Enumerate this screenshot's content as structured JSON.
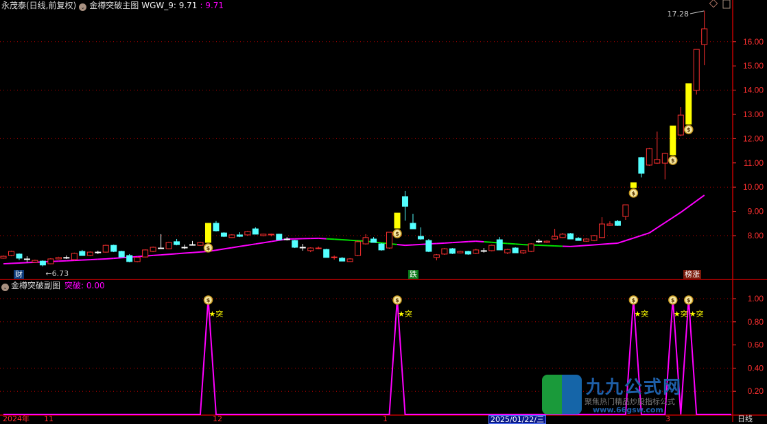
{
  "header": {
    "stock": "永茂泰(日线,前复权)",
    "indicator": "金樽突破主图",
    "wgw_label": "WGW_9: 9.71",
    "wgw_value": ": 9.71"
  },
  "sub_header": {
    "indicator": "金樽突破副图",
    "value_label": "突破: 0.00"
  },
  "colors": {
    "up": "#ff3030",
    "down": "#54ffff",
    "signal": "#ffff00",
    "ma_main": "#ff00ff",
    "ma_alt": "#00e000",
    "grid": "#c00000",
    "axis": "#ff3030"
  },
  "tags": {
    "cai": "财",
    "die": "跌",
    "bangzhang": "榜涨"
  },
  "annotations": {
    "low": "←6.73",
    "high": "17.28"
  },
  "time_axis": [
    "2024年",
    "11",
    "12",
    "1",
    "2025/01/22/三",
    "3",
    "日线"
  ],
  "watermark": {
    "name": "九九公式网",
    "slogan": "聚焦热门精品炒股指标公式",
    "site": "www.66gsw.com"
  },
  "chart_data": [
    {
      "type": "candlestick",
      "title": "金樽突破主图",
      "ylim": [
        6.2,
        17.6
      ],
      "yticks": [
        "16.00",
        "15.00",
        "14.00",
        "13.00",
        "12.00",
        "11.00",
        "10.00",
        "9.00",
        "8.00"
      ],
      "grid_lines": [
        16,
        14,
        12,
        10,
        8
      ],
      "signal_indices": [
        26,
        50,
        80,
        85,
        87
      ],
      "ohlc": [
        [
          7.07,
          7.18,
          7.05,
          7.15
        ],
        [
          7.18,
          7.38,
          7.15,
          7.35
        ],
        [
          7.24,
          7.27,
          6.99,
          7.07
        ],
        [
          7.04,
          7.15,
          6.9,
          7.04
        ],
        [
          6.9,
          7.01,
          6.88,
          6.98
        ],
        [
          6.95,
          6.98,
          6.73,
          6.79
        ],
        [
          6.84,
          7.07,
          6.82,
          7.04
        ],
        [
          7.04,
          7.13,
          7.02,
          7.1
        ],
        [
          7.1,
          7.18,
          7.04,
          7.1
        ],
        [
          7.01,
          7.3,
          6.98,
          7.27
        ],
        [
          7.35,
          7.41,
          7.18,
          7.18
        ],
        [
          7.18,
          7.35,
          7.15,
          7.32
        ],
        [
          7.32,
          7.38,
          7.24,
          7.32
        ],
        [
          7.32,
          7.63,
          7.3,
          7.6
        ],
        [
          7.6,
          7.63,
          7.32,
          7.35
        ],
        [
          7.35,
          7.38,
          7.1,
          7.12
        ],
        [
          7.18,
          7.24,
          6.9,
          6.93
        ],
        [
          6.93,
          7.12,
          6.9,
          7.1
        ],
        [
          7.12,
          7.43,
          7.1,
          7.41
        ],
        [
          7.35,
          7.55,
          7.32,
          7.52
        ],
        [
          7.49,
          8.06,
          7.46,
          7.49
        ],
        [
          7.46,
          7.75,
          7.44,
          7.72
        ],
        [
          7.75,
          7.86,
          7.6,
          7.63
        ],
        [
          7.52,
          7.63,
          7.44,
          7.52
        ],
        [
          7.63,
          7.78,
          7.6,
          7.63
        ],
        [
          7.6,
          7.75,
          7.58,
          7.72
        ],
        [
          7.72,
          8.51,
          7.72,
          8.51
        ],
        [
          8.51,
          8.6,
          8.17,
          8.2
        ],
        [
          8.11,
          8.14,
          7.94,
          7.97
        ],
        [
          7.92,
          8.06,
          7.9,
          8.03
        ],
        [
          8.03,
          8.14,
          7.94,
          7.97
        ],
        [
          8.03,
          8.2,
          8.0,
          8.17
        ],
        [
          8.28,
          8.34,
          8.06,
          8.06
        ],
        [
          8.0,
          8.08,
          7.97,
          8.06
        ],
        [
          8.03,
          8.08,
          7.97,
          8.06
        ],
        [
          8.06,
          8.08,
          7.83,
          7.83
        ],
        [
          7.86,
          7.94,
          7.8,
          7.86
        ],
        [
          7.8,
          7.83,
          7.49,
          7.52
        ],
        [
          7.52,
          7.66,
          7.38,
          7.52
        ],
        [
          7.38,
          7.52,
          7.32,
          7.49
        ],
        [
          7.46,
          7.55,
          7.44,
          7.49
        ],
        [
          7.43,
          7.46,
          7.1,
          7.1
        ],
        [
          7.1,
          7.18,
          7.01,
          7.12
        ],
        [
          7.07,
          7.12,
          6.95,
          6.95
        ],
        [
          6.93,
          7.07,
          6.93,
          7.04
        ],
        [
          7.18,
          7.8,
          7.15,
          7.75
        ],
        [
          7.66,
          8.06,
          7.63,
          7.92
        ],
        [
          7.86,
          7.94,
          7.72,
          7.72
        ],
        [
          7.66,
          7.69,
          7.38,
          7.41
        ],
        [
          7.49,
          8.14,
          7.46,
          8.14
        ],
        [
          8.31,
          8.93,
          8.31,
          8.93
        ],
        [
          9.61,
          9.84,
          8.62,
          9.21
        ],
        [
          8.51,
          8.9,
          8.28,
          8.28
        ],
        [
          7.97,
          8.34,
          7.83,
          7.86
        ],
        [
          7.8,
          7.86,
          7.32,
          7.35
        ],
        [
          7.1,
          7.24,
          6.98,
          7.21
        ],
        [
          7.24,
          7.49,
          7.21,
          7.46
        ],
        [
          7.46,
          7.49,
          7.24,
          7.27
        ],
        [
          7.29,
          7.38,
          7.27,
          7.35
        ],
        [
          7.35,
          7.38,
          7.21,
          7.24
        ],
        [
          7.27,
          7.46,
          7.24,
          7.41
        ],
        [
          7.38,
          7.49,
          7.3,
          7.38
        ],
        [
          7.38,
          7.63,
          7.35,
          7.6
        ],
        [
          7.83,
          7.94,
          7.41,
          7.41
        ],
        [
          7.29,
          7.46,
          7.24,
          7.43
        ],
        [
          7.49,
          7.52,
          7.29,
          7.29
        ],
        [
          7.29,
          7.41,
          7.24,
          7.38
        ],
        [
          7.35,
          7.69,
          7.32,
          7.66
        ],
        [
          7.77,
          7.86,
          7.69,
          7.77
        ],
        [
          7.72,
          7.8,
          7.69,
          7.77
        ],
        [
          7.86,
          8.28,
          7.83,
          7.97
        ],
        [
          7.92,
          8.11,
          7.9,
          8.06
        ],
        [
          8.08,
          8.11,
          7.86,
          7.86
        ],
        [
          7.89,
          7.94,
          7.8,
          7.8
        ],
        [
          7.77,
          7.89,
          7.75,
          7.86
        ],
        [
          7.8,
          8.03,
          7.77,
          8.0
        ],
        [
          7.92,
          8.76,
          7.9,
          8.48
        ],
        [
          8.42,
          8.59,
          8.4,
          8.48
        ],
        [
          8.59,
          8.65,
          8.4,
          8.42
        ],
        [
          8.79,
          9.27,
          8.65,
          9.27
        ],
        [
          9.98,
          10.18,
          9.98,
          10.18
        ],
        [
          11.22,
          11.25,
          10.4,
          10.57
        ],
        [
          10.91,
          11.62,
          10.88,
          11.59
        ],
        [
          10.99,
          12.29,
          10.96,
          11.14
        ],
        [
          10.99,
          11.42,
          10.32,
          11.39
        ],
        [
          11.33,
          12.52,
          11.33,
          12.52
        ],
        [
          12.15,
          13.31,
          12.1,
          12.97
        ],
        [
          12.6,
          14.27,
          12.6,
          14.27
        ],
        [
          13.99,
          15.68,
          13.82,
          15.68
        ],
        [
          15.88,
          17.28,
          15.03,
          16.53
        ]
      ],
      "ma_line": [
        {
          "i": 0,
          "v": 6.84
        },
        {
          "i": 13,
          "v": 7.04
        },
        {
          "i": 26,
          "v": 7.35
        },
        {
          "i": 36,
          "v": 7.86
        },
        {
          "i": 40,
          "v": 7.89
        },
        {
          "i": 46,
          "v": 7.77
        },
        {
          "i": 51,
          "v": 7.6
        },
        {
          "i": 60,
          "v": 7.77
        },
        {
          "i": 66,
          "v": 7.63
        },
        {
          "i": 72,
          "v": 7.55
        },
        {
          "i": 78,
          "v": 7.69
        },
        {
          "i": 82,
          "v": 8.11
        },
        {
          "i": 86,
          "v": 8.96
        },
        {
          "i": 89,
          "v": 9.67
        }
      ],
      "ma_alt_ranges": [
        [
          41,
          50
        ],
        [
          61,
          71
        ]
      ]
    },
    {
      "type": "line",
      "title": "金樽突破副图",
      "series_label": "突破",
      "ylim": [
        0,
        1.1
      ],
      "yticks": [
        "1.00",
        "0.80",
        "0.60",
        "0.40",
        "0.20"
      ],
      "grid_lines": [
        1.0,
        0.8,
        0.4,
        0.2
      ],
      "signal_indices": [
        26,
        50,
        80,
        85,
        87
      ],
      "signal_text": "★突"
    }
  ]
}
